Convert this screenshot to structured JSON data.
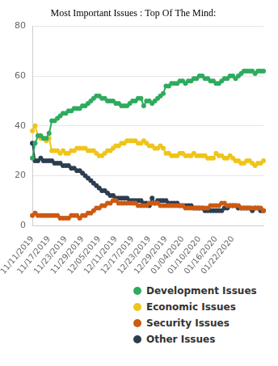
{
  "chart_data": {
    "type": "line",
    "title": "Most Important Issues : Top Of The Mind:",
    "categories": [
      "11/11/2019",
      null,
      null,
      null,
      null,
      null,
      "11/17/2019",
      null,
      null,
      null,
      null,
      null,
      "11/23/2019",
      null,
      null,
      null,
      null,
      null,
      "11/29/2019",
      null,
      null,
      null,
      null,
      null,
      "12/05/2019",
      null,
      null,
      null,
      null,
      null,
      "12/11/2019",
      null,
      null,
      null,
      null,
      null,
      "12/17/2019",
      null,
      null,
      null,
      null,
      null,
      "12/23/2019",
      null,
      null,
      null,
      null,
      null,
      "12/29/2019",
      null,
      null,
      null,
      null,
      null,
      "01/04/2020",
      null,
      null,
      null,
      null,
      null,
      "01/10/2020",
      null,
      null,
      null,
      null,
      null,
      "01/16/2020",
      null,
      null,
      null,
      null,
      null,
      "01/22/2020",
      null,
      null,
      null,
      null,
      null,
      null,
      null,
      null,
      null,
      null,
      null
    ],
    "series": [
      {
        "name": "Development Issues",
        "color": "#2eab5e",
        "values": [
          27,
          33,
          36,
          36,
          35,
          35,
          37,
          42,
          42,
          43,
          44,
          45,
          45,
          46,
          46,
          47,
          47,
          47,
          48,
          48,
          49,
          50,
          51,
          52,
          52,
          51,
          51,
          50,
          50,
          50,
          49,
          49,
          48,
          48,
          48,
          49,
          50,
          50,
          51,
          51,
          48,
          50,
          50,
          49,
          50,
          51,
          52,
          53,
          56,
          56,
          57,
          57,
          57,
          58,
          58,
          57,
          58,
          58,
          59,
          59,
          60,
          60,
          59,
          59,
          58,
          58,
          57,
          57,
          58,
          59,
          59,
          60,
          60,
          59,
          60,
          61,
          62,
          62,
          62,
          62,
          61,
          62,
          62,
          62
        ]
      },
      {
        "name": "Economic Issues",
        "color": "#f0c419",
        "values": [
          38,
          40,
          36,
          35,
          35,
          34,
          35,
          30,
          30,
          30,
          29,
          30,
          29,
          29,
          30,
          30,
          31,
          31,
          31,
          31,
          30,
          30,
          30,
          29,
          28,
          28,
          29,
          30,
          30,
          31,
          32,
          32,
          33,
          33,
          34,
          34,
          34,
          34,
          33,
          33,
          34,
          33,
          32,
          32,
          31,
          31,
          32,
          31,
          29,
          29,
          28,
          28,
          28,
          29,
          29,
          28,
          28,
          28,
          29,
          28,
          28,
          28,
          28,
          27,
          27,
          27,
          29,
          28,
          28,
          27,
          27,
          28,
          27,
          26,
          26,
          25,
          25,
          26,
          26,
          25,
          24,
          25,
          25,
          26
        ]
      },
      {
        "name": "Security Issues",
        "color": "#cc5a12",
        "values": [
          4,
          5,
          4,
          4,
          4,
          4,
          4,
          4,
          4,
          4,
          3,
          3,
          3,
          3,
          4,
          4,
          4,
          3,
          4,
          4,
          5,
          5,
          6,
          7,
          7,
          8,
          8,
          9,
          9,
          10,
          10,
          9,
          9,
          9,
          9,
          9,
          9,
          9,
          8,
          8,
          8,
          8,
          9,
          9,
          9,
          9,
          8,
          8,
          8,
          8,
          8,
          8,
          8,
          8,
          8,
          7,
          7,
          7,
          7,
          7,
          7,
          7,
          7,
          7,
          8,
          8,
          8,
          8,
          9,
          9,
          8,
          8,
          8,
          8,
          8,
          7,
          7,
          7,
          7,
          7,
          7,
          7,
          7,
          6
        ]
      },
      {
        "name": "Other Issues",
        "color": "#2c3e50",
        "values": [
          33,
          26,
          26,
          27,
          26,
          26,
          26,
          26,
          25,
          25,
          25,
          24,
          24,
          24,
          23,
          23,
          22,
          22,
          21,
          20,
          19,
          18,
          17,
          16,
          15,
          14,
          14,
          13,
          12,
          12,
          11,
          11,
          11,
          11,
          11,
          10,
          10,
          10,
          10,
          10,
          9,
          9,
          8,
          11,
          9,
          10,
          10,
          10,
          10,
          9,
          9,
          9,
          9,
          8,
          8,
          8,
          8,
          8,
          7,
          7,
          7,
          7,
          6,
          6,
          6,
          6,
          6,
          6,
          6,
          7,
          7,
          8,
          8,
          8,
          7,
          7,
          7,
          7,
          7,
          6,
          7,
          7,
          6,
          6
        ]
      }
    ],
    "ylim": [
      0,
      80
    ],
    "yticks": [
      0,
      20,
      40,
      60,
      80
    ],
    "grid": true,
    "legend": "bottom",
    "marker": "circle"
  }
}
